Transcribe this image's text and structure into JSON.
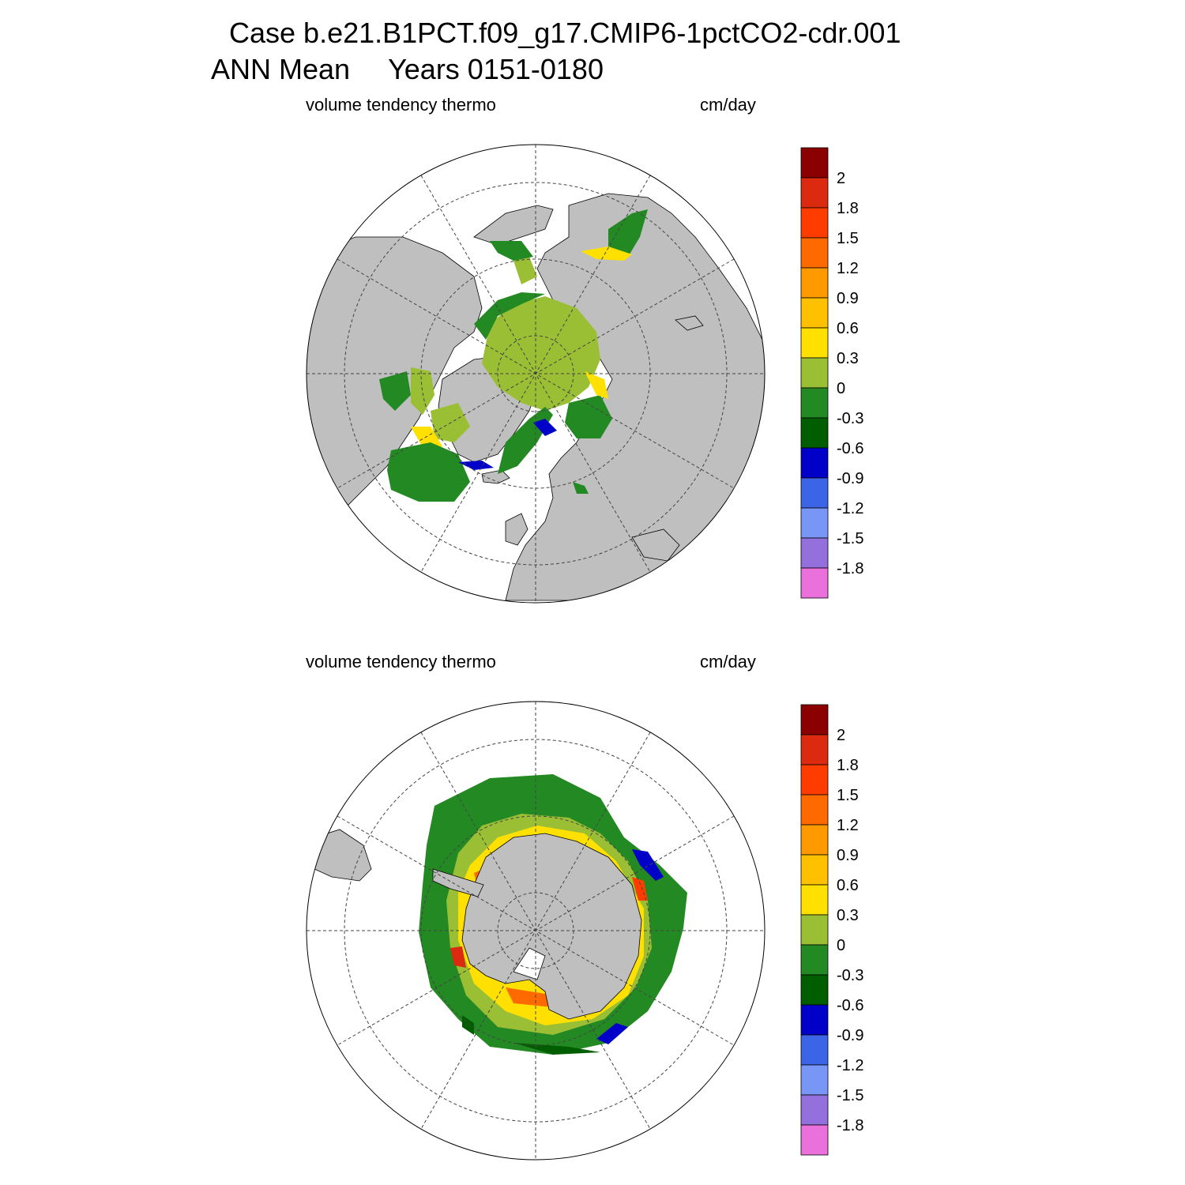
{
  "header": {
    "case_title": "Case b.e21.B1PCT.f09_g17.CMIP6-1pctCO2-cdr.001",
    "season": "ANN Mean",
    "years": "Years 0151-0180"
  },
  "panels": [
    {
      "hemisphere": "north",
      "variable": "volume tendency thermo",
      "units": "cm/day"
    },
    {
      "hemisphere": "south",
      "variable": "volume tendency thermo",
      "units": "cm/day"
    }
  ],
  "colorbar": {
    "labels": [
      "2",
      "1.8",
      "1.5",
      "1.2",
      "0.9",
      "0.6",
      "0.3",
      "0",
      "-0.3",
      "-0.6",
      "-0.9",
      "-1.2",
      "-1.5",
      "-1.8"
    ],
    "colors": [
      "#8b0000",
      "#dc2a10",
      "#ff3c00",
      "#ff6a00",
      "#ff9900",
      "#ffc000",
      "#ffe000",
      "#9abf34",
      "#238a23",
      "#005e00",
      "#0000c8",
      "#3c64e6",
      "#7896f5",
      "#9370db",
      "#ea70dc"
    ]
  },
  "colors": {
    "land": "#bfbfbf",
    "ocean": "#ffffff"
  }
}
